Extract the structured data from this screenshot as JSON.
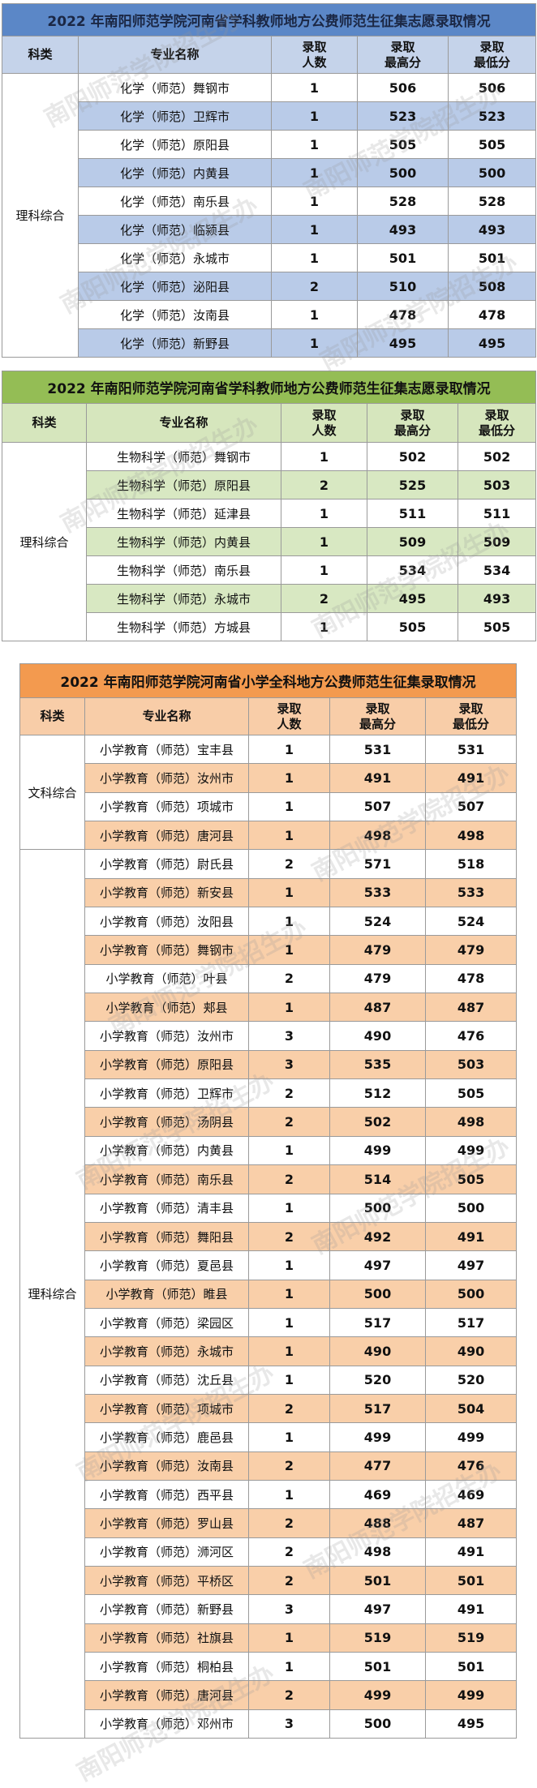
{
  "header": {
    "category": "科类",
    "major": "专业名称",
    "count": "录取\n人数",
    "max": "录取\n最高分",
    "min": "录取\n最低分"
  },
  "watermark": "南阳师范学院招生办",
  "table1": {
    "title": "2022 年南阳师范学院河南省学科教师地方公费师范生征集志愿录取情况",
    "groups": [
      {
        "category": "理科综合",
        "rows": [
          {
            "major": "化学（师范）舞钢市",
            "count": "1",
            "max": "506",
            "min": "506"
          },
          {
            "major": "化学（师范）卫辉市",
            "count": "1",
            "max": "523",
            "min": "523"
          },
          {
            "major": "化学（师范）原阳县",
            "count": "1",
            "max": "505",
            "min": "505"
          },
          {
            "major": "化学（师范）内黄县",
            "count": "1",
            "max": "500",
            "min": "500"
          },
          {
            "major": "化学（师范）南乐县",
            "count": "1",
            "max": "528",
            "min": "528"
          },
          {
            "major": "化学（师范）临颍县",
            "count": "1",
            "max": "493",
            "min": "493"
          },
          {
            "major": "化学（师范）永城市",
            "count": "1",
            "max": "501",
            "min": "501"
          },
          {
            "major": "化学（师范）泌阳县",
            "count": "2",
            "max": "510",
            "min": "508"
          },
          {
            "major": "化学（师范）汝南县",
            "count": "1",
            "max": "478",
            "min": "478"
          },
          {
            "major": "化学（师范）新野县",
            "count": "1",
            "max": "495",
            "min": "495"
          }
        ]
      }
    ]
  },
  "table2": {
    "title": "2022 年南阳师范学院河南省学科教师地方公费师范生征集志愿录取情况",
    "groups": [
      {
        "category": "理科综合",
        "rows": [
          {
            "major": "生物科学（师范）舞钢市",
            "count": "1",
            "max": "502",
            "min": "502"
          },
          {
            "major": "生物科学（师范）原阳县",
            "count": "2",
            "max": "525",
            "min": "503"
          },
          {
            "major": "生物科学（师范）延津县",
            "count": "1",
            "max": "511",
            "min": "511"
          },
          {
            "major": "生物科学（师范）内黄县",
            "count": "1",
            "max": "509",
            "min": "509"
          },
          {
            "major": "生物科学（师范）南乐县",
            "count": "1",
            "max": "534",
            "min": "534"
          },
          {
            "major": "生物科学（师范）永城市",
            "count": "2",
            "max": "495",
            "min": "493"
          },
          {
            "major": "生物科学（师范）方城县",
            "count": "1",
            "max": "505",
            "min": "505"
          }
        ]
      }
    ]
  },
  "table3": {
    "title": "2022 年南阳师范学院河南省小学全科地方公费师范生征集录取情况",
    "groups": [
      {
        "category": "文科综合",
        "rows": [
          {
            "major": "小学教育（师范）宝丰县",
            "count": "1",
            "max": "531",
            "min": "531"
          },
          {
            "major": "小学教育（师范）汝州市",
            "count": "1",
            "max": "491",
            "min": "491"
          },
          {
            "major": "小学教育（师范）项城市",
            "count": "1",
            "max": "507",
            "min": "507"
          },
          {
            "major": "小学教育（师范）唐河县",
            "count": "1",
            "max": "498",
            "min": "498"
          }
        ]
      },
      {
        "category": "理科综合",
        "rows": [
          {
            "major": "小学教育（师范）尉氏县",
            "count": "2",
            "max": "571",
            "min": "518"
          },
          {
            "major": "小学教育（师范）新安县",
            "count": "1",
            "max": "533",
            "min": "533"
          },
          {
            "major": "小学教育（师范）汝阳县",
            "count": "1",
            "max": "524",
            "min": "524"
          },
          {
            "major": "小学教育（师范）舞钢市",
            "count": "1",
            "max": "479",
            "min": "479"
          },
          {
            "major": "小学教育（师范）叶县",
            "count": "2",
            "max": "479",
            "min": "478"
          },
          {
            "major": "小学教育（师范）郏县",
            "count": "1",
            "max": "487",
            "min": "487"
          },
          {
            "major": "小学教育（师范）汝州市",
            "count": "3",
            "max": "490",
            "min": "476"
          },
          {
            "major": "小学教育（师范）原阳县",
            "count": "3",
            "max": "535",
            "min": "503"
          },
          {
            "major": "小学教育（师范）卫辉市",
            "count": "2",
            "max": "512",
            "min": "505"
          },
          {
            "major": "小学教育（师范）汤阴县",
            "count": "2",
            "max": "502",
            "min": "498"
          },
          {
            "major": "小学教育（师范）内黄县",
            "count": "1",
            "max": "499",
            "min": "499"
          },
          {
            "major": "小学教育（师范）南乐县",
            "count": "2",
            "max": "514",
            "min": "505"
          },
          {
            "major": "小学教育（师范）清丰县",
            "count": "1",
            "max": "500",
            "min": "500"
          },
          {
            "major": "小学教育（师范）舞阳县",
            "count": "2",
            "max": "492",
            "min": "491"
          },
          {
            "major": "小学教育（师范）夏邑县",
            "count": "1",
            "max": "497",
            "min": "497"
          },
          {
            "major": "小学教育（师范）睢县",
            "count": "1",
            "max": "500",
            "min": "500"
          },
          {
            "major": "小学教育（师范）梁园区",
            "count": "1",
            "max": "517",
            "min": "517"
          },
          {
            "major": "小学教育（师范）永城市",
            "count": "1",
            "max": "490",
            "min": "490"
          },
          {
            "major": "小学教育（师范）沈丘县",
            "count": "1",
            "max": "520",
            "min": "520"
          },
          {
            "major": "小学教育（师范）项城市",
            "count": "2",
            "max": "517",
            "min": "504"
          },
          {
            "major": "小学教育（师范）鹿邑县",
            "count": "1",
            "max": "499",
            "min": "499"
          },
          {
            "major": "小学教育（师范）汝南县",
            "count": "2",
            "max": "477",
            "min": "476"
          },
          {
            "major": "小学教育（师范）西平县",
            "count": "1",
            "max": "469",
            "min": "469"
          },
          {
            "major": "小学教育（师范）罗山县",
            "count": "2",
            "max": "488",
            "min": "487"
          },
          {
            "major": "小学教育（师范）浉河区",
            "count": "2",
            "max": "498",
            "min": "491"
          },
          {
            "major": "小学教育（师范）平桥区",
            "count": "2",
            "max": "501",
            "min": "501"
          },
          {
            "major": "小学教育（师范）新野县",
            "count": "3",
            "max": "497",
            "min": "491"
          },
          {
            "major": "小学教育（师范）社旗县",
            "count": "1",
            "max": "519",
            "min": "519"
          },
          {
            "major": "小学教育（师范）桐柏县",
            "count": "1",
            "max": "501",
            "min": "501"
          },
          {
            "major": "小学教育（师范）唐河县",
            "count": "2",
            "max": "499",
            "min": "499"
          },
          {
            "major": "小学教育（师范）邓州市",
            "count": "3",
            "max": "500",
            "min": "495"
          }
        ]
      }
    ]
  }
}
